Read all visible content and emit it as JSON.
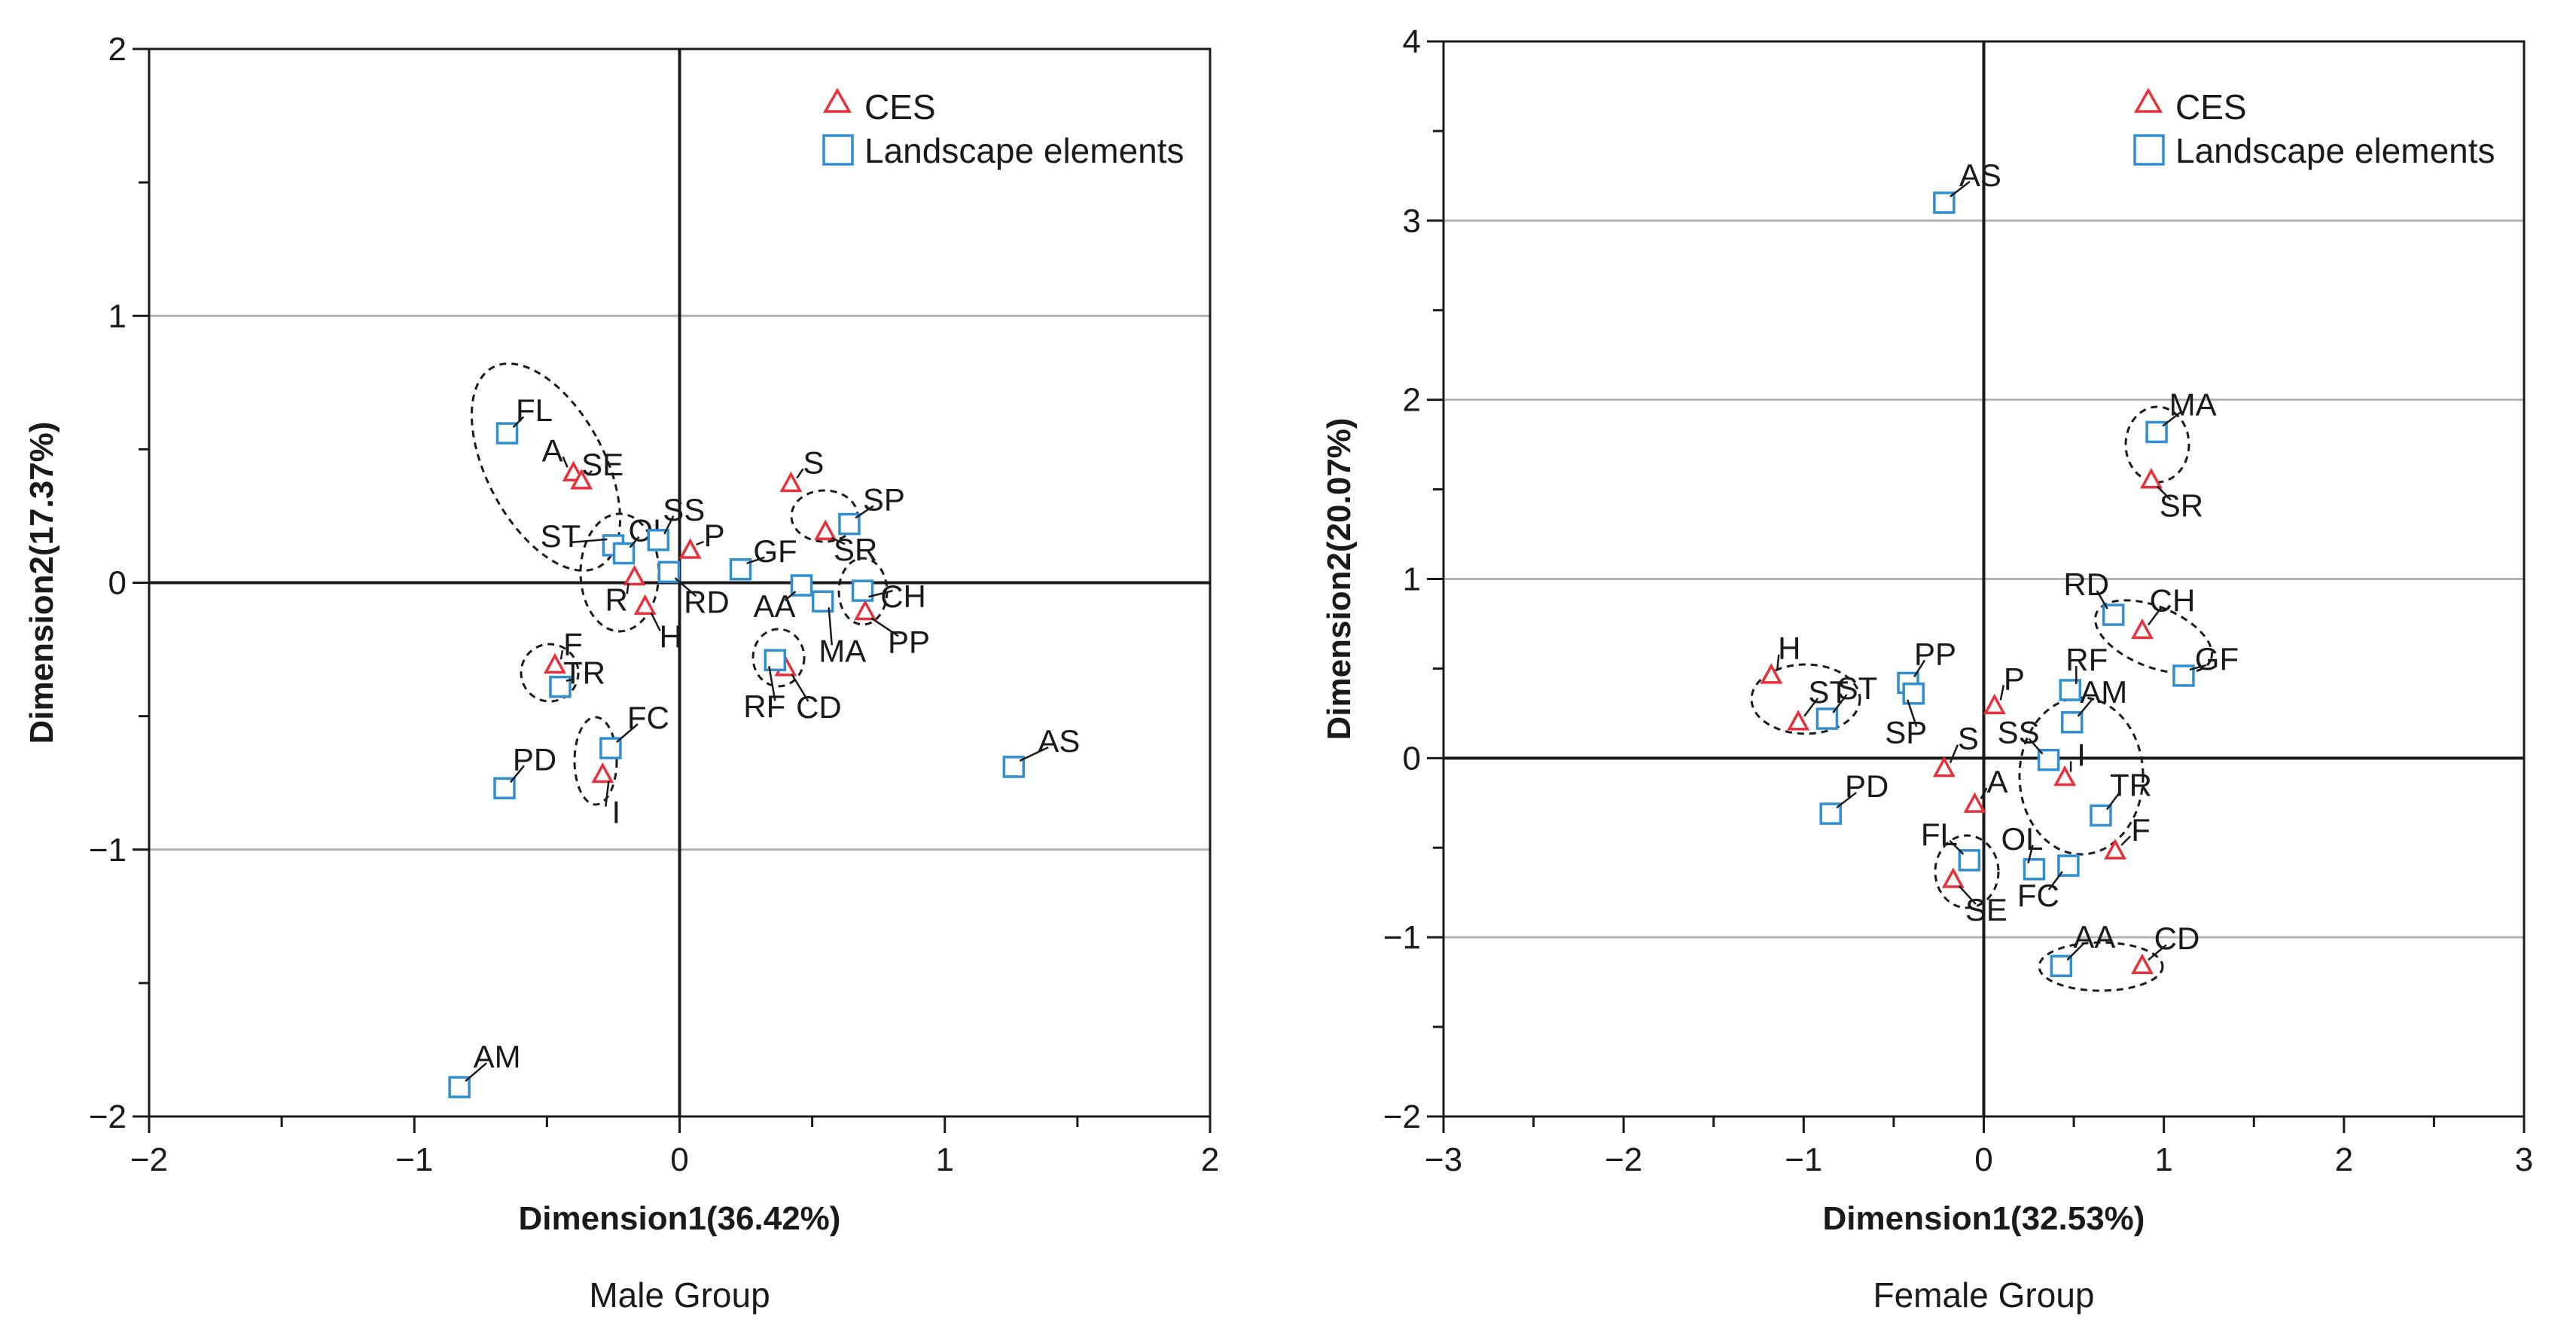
{
  "colors": {
    "ces": "#e8303a",
    "landscape": "#2f8fd0",
    "grid": "#b3b3b3",
    "axis": "#1a1a1a"
  },
  "chart_data": [
    {
      "type": "scatter",
      "caption": "Male Group",
      "xlabel": "Dimension1(36.42%)",
      "ylabel": "Dimension2(17.37%)",
      "xlim": [
        -2,
        2
      ],
      "ylim": [
        -2,
        2
      ],
      "xticks": [
        -2,
        -1,
        0,
        1,
        2
      ],
      "xtick_labels": [
        "−2",
        "−1",
        "0",
        "1",
        "2"
      ],
      "yticks": [
        -2,
        -1,
        0,
        1,
        2
      ],
      "ytick_labels": [
        "−2",
        "−1",
        "0",
        "1",
        "2"
      ],
      "grid_y": [
        -1,
        1
      ],
      "legend": {
        "position": "top-right",
        "ces": "CES",
        "landscape": "Landscape elements"
      },
      "series": [
        {
          "name": "CES",
          "marker": "triangle",
          "points": [
            {
              "label": "A",
              "x": -0.4,
              "y": 0.41
            },
            {
              "label": "SE",
              "x": -0.37,
              "y": 0.38
            },
            {
              "label": "R",
              "x": -0.17,
              "y": 0.02
            },
            {
              "label": "H",
              "x": -0.13,
              "y": -0.09
            },
            {
              "label": "P",
              "x": 0.04,
              "y": 0.12
            },
            {
              "label": "S",
              "x": 0.42,
              "y": 0.37
            },
            {
              "label": "SR",
              "x": 0.55,
              "y": 0.19
            },
            {
              "label": "PP",
              "x": 0.7,
              "y": -0.11
            },
            {
              "label": "CD",
              "x": 0.4,
              "y": -0.32
            },
            {
              "label": "F",
              "x": -0.47,
              "y": -0.31
            },
            {
              "label": "I",
              "x": -0.29,
              "y": -0.72
            }
          ]
        },
        {
          "name": "Landscape elements",
          "marker": "square",
          "points": [
            {
              "label": "FL",
              "x": -0.65,
              "y": 0.56
            },
            {
              "label": "ST",
              "x": -0.25,
              "y": 0.14
            },
            {
              "label": "OL",
              "x": -0.21,
              "y": 0.11
            },
            {
              "label": "SS",
              "x": -0.08,
              "y": 0.16
            },
            {
              "label": "RD",
              "x": -0.04,
              "y": 0.04
            },
            {
              "label": "GF",
              "x": 0.23,
              "y": 0.05
            },
            {
              "label": "SP",
              "x": 0.64,
              "y": 0.22
            },
            {
              "label": "AA",
              "x": 0.46,
              "y": -0.01
            },
            {
              "label": "MA",
              "x": 0.54,
              "y": -0.07
            },
            {
              "label": "CH",
              "x": 0.69,
              "y": -0.03
            },
            {
              "label": "RF",
              "x": 0.36,
              "y": -0.29
            },
            {
              "label": "TR",
              "x": -0.45,
              "y": -0.39
            },
            {
              "label": "FC",
              "x": -0.26,
              "y": -0.62
            },
            {
              "label": "PD",
              "x": -0.66,
              "y": -0.77
            },
            {
              "label": "AS",
              "x": 1.26,
              "y": -0.69
            },
            {
              "label": "AM",
              "x": -0.83,
              "y": -1.89
            }
          ]
        }
      ]
    },
    {
      "type": "scatter",
      "caption": "Female Group",
      "xlabel": "Dimension1(32.53%)",
      "ylabel": "Dimension2(20.07%)",
      "xlim": [
        -3,
        3
      ],
      "ylim": [
        -2,
        4
      ],
      "xticks": [
        -3,
        -2,
        -1,
        0,
        1,
        2,
        3
      ],
      "xtick_labels": [
        "−3",
        "−2",
        "−1",
        "0",
        "1",
        "2",
        "3"
      ],
      "yticks": [
        -2,
        -1,
        0,
        1,
        2,
        3,
        4
      ],
      "ytick_labels": [
        "−2",
        "−1",
        "0",
        "1",
        "2",
        "3",
        "4"
      ],
      "grid_y": [
        -1,
        1,
        2,
        3
      ],
      "legend": {
        "position": "top-right",
        "ces": "CES",
        "landscape": "Landscape elements"
      },
      "series": [
        {
          "name": "CES",
          "marker": "triangle",
          "points": [
            {
              "label": "SR",
              "x": 0.93,
              "y": 1.55
            },
            {
              "label": "CH",
              "x": 0.88,
              "y": 0.71
            },
            {
              "label": "H",
              "x": -1.18,
              "y": 0.46
            },
            {
              "label": "ST",
              "x": -1.03,
              "y": 0.2
            },
            {
              "label": "P",
              "x": 0.06,
              "y": 0.29
            },
            {
              "label": "S",
              "x": -0.22,
              "y": -0.06
            },
            {
              "label": "A",
              "x": -0.05,
              "y": -0.26
            },
            {
              "label": "I",
              "x": 0.45,
              "y": -0.11
            },
            {
              "label": "F",
              "x": 0.73,
              "y": -0.52
            },
            {
              "label": "SE",
              "x": -0.17,
              "y": -0.68
            },
            {
              "label": "CD",
              "x": 0.88,
              "y": -1.16
            }
          ]
        },
        {
          "name": "Landscape elements",
          "marker": "square",
          "points": [
            {
              "label": "AS",
              "x": -0.22,
              "y": 3.1
            },
            {
              "label": "MA",
              "x": 0.96,
              "y": 1.82
            },
            {
              "label": "RD",
              "x": 0.72,
              "y": 0.8
            },
            {
              "label": "GF",
              "x": 1.11,
              "y": 0.46
            },
            {
              "label": "RF",
              "x": 0.48,
              "y": 0.38
            },
            {
              "label": "PP",
              "x": -0.42,
              "y": 0.42
            },
            {
              "label": "SP",
              "x": -0.39,
              "y": 0.36
            },
            {
              "label": "SS",
              "x": 0.36,
              "y": -0.01
            },
            {
              "label": "AM",
              "x": 0.49,
              "y": 0.2
            },
            {
              "label": "ST",
              "x": -0.87,
              "y": 0.22
            },
            {
              "label": "PD",
              "x": -0.85,
              "y": -0.31
            },
            {
              "label": "TR",
              "x": 0.65,
              "y": -0.32
            },
            {
              "label": "FL",
              "x": -0.08,
              "y": -0.57
            },
            {
              "label": "OL",
              "x": 0.28,
              "y": -0.62
            },
            {
              "label": "FC",
              "x": 0.47,
              "y": -0.6
            },
            {
              "label": "AA",
              "x": 0.43,
              "y": -1.16
            }
          ]
        }
      ]
    }
  ]
}
